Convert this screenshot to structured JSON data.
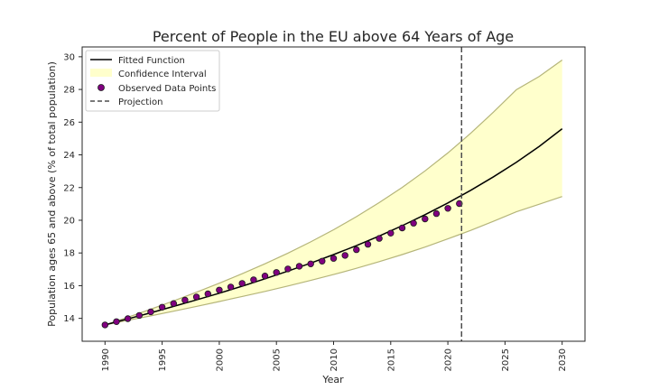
{
  "chart_data": {
    "type": "line",
    "title": "Percent of People in the EU above 64 Years of Age",
    "xlabel": "Year",
    "ylabel": "Population ages 65 and above (% of total population)",
    "xlim": [
      1988,
      2032
    ],
    "ylim": [
      12.6,
      30.6
    ],
    "xticks": [
      1990,
      1995,
      2000,
      2005,
      2010,
      2015,
      2020,
      2025,
      2030
    ],
    "yticks": [
      14,
      16,
      18,
      20,
      22,
      24,
      26,
      28,
      30
    ],
    "grid": false,
    "legend_position": "top-left",
    "projection_year": 2021.2,
    "legend": [
      {
        "label": "Fitted Function",
        "kind": "line"
      },
      {
        "label": "Confidence Interval",
        "kind": "band"
      },
      {
        "label": "Observed Data Points",
        "kind": "marker"
      },
      {
        "label": "Projection",
        "kind": "dashed"
      }
    ],
    "fitted_function": {
      "x": [
        1990,
        1992,
        1994,
        1996,
        1998,
        2000,
        2002,
        2004,
        2006,
        2008,
        2010,
        2012,
        2014,
        2016,
        2018,
        2020,
        2022,
        2024,
        2026,
        2028,
        2030
      ],
      "y": [
        13.6,
        13.97,
        14.34,
        14.73,
        15.13,
        15.54,
        15.97,
        16.42,
        16.89,
        17.38,
        17.9,
        18.45,
        19.04,
        19.67,
        20.34,
        21.06,
        21.83,
        22.66,
        23.55,
        24.52,
        25.6
      ]
    },
    "confidence_upper": {
      "x": [
        1990,
        1992,
        1994,
        1996,
        1998,
        2000,
        2002,
        2004,
        2006,
        2008,
        2010,
        2012,
        2014,
        2016,
        2018,
        2020,
        2022,
        2024,
        2026,
        2028,
        2030
      ],
      "y": [
        13.6,
        14.07,
        14.56,
        15.07,
        15.6,
        16.15,
        16.73,
        17.34,
        17.99,
        18.68,
        19.42,
        20.22,
        21.08,
        22.01,
        23.02,
        24.12,
        25.32,
        26.62,
        27.99,
        28.8,
        29.8
      ]
    },
    "confidence_lower": {
      "x": [
        1990,
        1992,
        1994,
        1996,
        1998,
        2000,
        2002,
        2004,
        2006,
        2008,
        2010,
        2012,
        2014,
        2016,
        2018,
        2020,
        2022,
        2024,
        2026,
        2028,
        2030
      ],
      "y": [
        13.6,
        13.88,
        14.15,
        14.44,
        14.73,
        15.03,
        15.34,
        15.65,
        15.98,
        16.32,
        16.68,
        17.06,
        17.47,
        17.9,
        18.36,
        18.86,
        19.38,
        19.94,
        20.52,
        20.98,
        21.45
      ]
    },
    "observed": {
      "x": [
        1990,
        1991,
        1992,
        1993,
        1994,
        1995,
        1996,
        1997,
        1998,
        1999,
        2000,
        2001,
        2002,
        2003,
        2004,
        2005,
        2006,
        2007,
        2008,
        2009,
        2010,
        2011,
        2012,
        2013,
        2014,
        2015,
        2016,
        2017,
        2018,
        2019,
        2020,
        2021
      ],
      "y": [
        13.6,
        13.8,
        13.98,
        14.18,
        14.4,
        14.68,
        14.91,
        15.12,
        15.31,
        15.5,
        15.73,
        15.92,
        16.14,
        16.36,
        16.59,
        16.81,
        17.02,
        17.19,
        17.33,
        17.5,
        17.67,
        17.85,
        18.2,
        18.53,
        18.89,
        19.21,
        19.53,
        19.82,
        20.08,
        20.41,
        20.73,
        21.02
      ]
    },
    "colors": {
      "fitted": "#000000",
      "band_fill": "#ffffcc",
      "band_edge": "#b5b57a",
      "marker_fill": "#800080",
      "marker_edge": "#1a1a1a",
      "projection": "#4d4d4d"
    }
  }
}
